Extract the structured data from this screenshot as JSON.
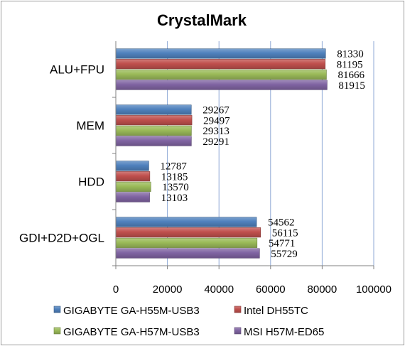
{
  "chart_data": {
    "type": "bar",
    "orientation": "horizontal",
    "title": "CrystalMark",
    "categories": [
      "ALU+FPU",
      "MEM",
      "HDD",
      "GDI+D2D+OGL"
    ],
    "series": [
      {
        "name": "GIGABYTE GA-H55M-USB3",
        "color": "#4F81BD",
        "values": [
          81330,
          29267,
          12787,
          54562
        ]
      },
      {
        "name": "Intel DH55TC",
        "color": "#C0504D",
        "values": [
          81195,
          29497,
          13185,
          56115
        ]
      },
      {
        "name": "GIGABYTE GA-H57M-USB3",
        "color": "#9BBB59",
        "values": [
          81666,
          29313,
          13570,
          54771
        ]
      },
      {
        "name": "MSI H57M-ED65",
        "color": "#8064A2",
        "values": [
          81915,
          29291,
          13103,
          55729
        ]
      }
    ],
    "xlim": [
      0,
      100000
    ],
    "x_ticks": [
      "0",
      "20000",
      "40000",
      "60000",
      "80000",
      "100000"
    ],
    "grid": true,
    "legend_position": "bottom"
  }
}
